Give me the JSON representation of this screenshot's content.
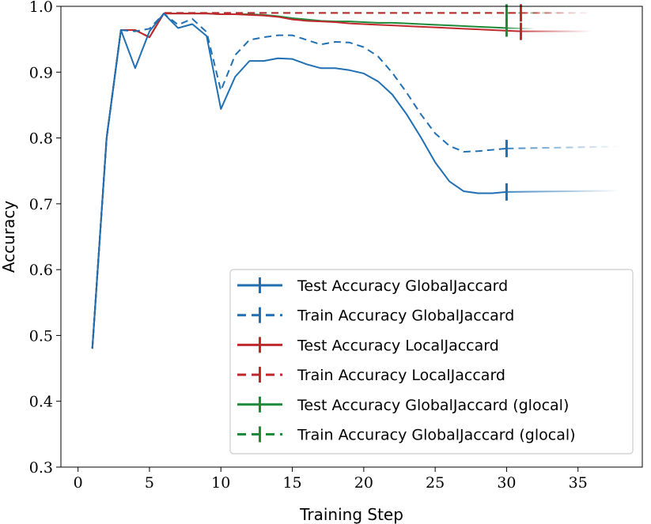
{
  "chart_data": {
    "type": "line",
    "title": "",
    "xlabel": "Training Step",
    "ylabel": "Accuracy",
    "xlim": [
      -1.2,
      39.5
    ],
    "ylim": [
      0.3,
      1.0
    ],
    "xticks": [
      0,
      5,
      10,
      15,
      20,
      25,
      30,
      35
    ],
    "yticks": [
      0.3,
      0.4,
      0.5,
      0.6,
      0.7,
      0.8,
      0.9,
      1.0
    ],
    "xtick_labels": [
      "0",
      "5",
      "10",
      "15",
      "20",
      "25",
      "30",
      "35"
    ],
    "ytick_labels": [
      "0.3",
      "0.4",
      "0.5",
      "0.6",
      "0.7",
      "0.8",
      "0.9",
      "1.0"
    ],
    "grid": false,
    "legend_position": "lower-right",
    "series": [
      {
        "name": "Test Accuracy GlobalJaccard",
        "color": "#1f6fb2",
        "linestyle": "solid",
        "x": [
          1,
          2,
          3,
          4,
          5,
          6,
          7,
          8,
          9,
          10,
          11,
          12,
          13,
          14,
          15,
          16,
          17,
          18,
          19,
          20,
          21,
          22,
          23,
          24,
          25,
          26,
          27,
          28,
          29,
          30
        ],
        "y": [
          0.48,
          0.8,
          0.964,
          0.906,
          0.962,
          0.989,
          0.967,
          0.973,
          0.955,
          0.844,
          0.893,
          0.917,
          0.917,
          0.921,
          0.92,
          0.912,
          0.906,
          0.906,
          0.903,
          0.898,
          0.886,
          0.866,
          0.836,
          0.801,
          0.763,
          0.734,
          0.719,
          0.716,
          0.716,
          0.718
        ],
        "fade_end": [
          38,
          0.72
        ],
        "marker_at": 30
      },
      {
        "name": "Train Accuracy GlobalJaccard",
        "color": "#1f6fb2",
        "linestyle": "dashed",
        "x": [
          1,
          2,
          3,
          4,
          5,
          6,
          7,
          8,
          9,
          10,
          11,
          12,
          13,
          14,
          15,
          16,
          17,
          18,
          19,
          20,
          21,
          22,
          23,
          24,
          25,
          26,
          27,
          28,
          29,
          30
        ],
        "y": [
          0.48,
          0.8,
          0.964,
          0.962,
          0.966,
          0.989,
          0.972,
          0.981,
          0.961,
          0.872,
          0.926,
          0.949,
          0.953,
          0.956,
          0.956,
          0.949,
          0.942,
          0.946,
          0.945,
          0.938,
          0.924,
          0.899,
          0.869,
          0.836,
          0.807,
          0.788,
          0.779,
          0.78,
          0.782,
          0.784
        ],
        "fade_end": [
          38,
          0.787
        ],
        "marker_at": 30
      },
      {
        "name": "Test Accuracy LocalJaccard",
        "color": "#c0282d",
        "linestyle": "solid",
        "x": [
          1,
          2,
          3,
          4,
          5,
          6,
          7,
          8,
          9,
          10,
          11,
          12,
          13,
          14,
          15,
          16,
          17,
          18,
          19,
          20,
          21,
          22,
          23,
          24,
          25,
          26,
          27,
          28,
          29,
          30,
          31
        ],
        "y": [
          0.48,
          0.8,
          0.964,
          0.964,
          0.953,
          0.989,
          0.989,
          0.989,
          0.989,
          0.988,
          0.988,
          0.987,
          0.986,
          0.984,
          0.98,
          0.978,
          0.977,
          0.976,
          0.974,
          0.973,
          0.972,
          0.971,
          0.97,
          0.969,
          0.968,
          0.967,
          0.966,
          0.965,
          0.964,
          0.963,
          0.962
        ],
        "fade_end": [
          36,
          0.962
        ],
        "marker_at": 31
      },
      {
        "name": "Train Accuracy LocalJaccard",
        "color": "#c0282d",
        "linestyle": "dashed",
        "x": [
          1,
          2,
          3,
          4,
          5,
          6,
          7,
          8,
          9,
          10,
          11,
          12,
          13,
          14,
          15,
          16,
          17,
          18,
          19,
          20,
          21,
          22,
          23,
          24,
          25,
          26,
          27,
          28,
          29,
          30,
          31
        ],
        "y": [
          0.48,
          0.8,
          0.964,
          0.964,
          0.953,
          0.99,
          0.99,
          0.99,
          0.99,
          0.99,
          0.99,
          0.99,
          0.99,
          0.99,
          0.99,
          0.99,
          0.99,
          0.99,
          0.99,
          0.99,
          0.99,
          0.99,
          0.99,
          0.99,
          0.99,
          0.99,
          0.99,
          0.99,
          0.99,
          0.99,
          0.99
        ],
        "fade_end": [
          36,
          0.99
        ],
        "marker_at": 31
      },
      {
        "name": "Test Accuracy GlobalJaccard (glocal)",
        "color": "#1d8a3a",
        "linestyle": "solid",
        "x": [
          1,
          2,
          3,
          4,
          5,
          6,
          7,
          8,
          9,
          10,
          11,
          12,
          13,
          14,
          15,
          16,
          17,
          18,
          19,
          20,
          21,
          22,
          23,
          24,
          25,
          26,
          27,
          28,
          29,
          30
        ],
        "y": [
          0.48,
          0.8,
          0.964,
          0.964,
          0.953,
          0.989,
          0.989,
          0.989,
          0.989,
          0.988,
          0.988,
          0.988,
          0.987,
          0.985,
          0.982,
          0.98,
          0.978,
          0.977,
          0.977,
          0.976,
          0.975,
          0.975,
          0.974,
          0.973,
          0.972,
          0.971,
          0.97,
          0.969,
          0.968,
          0.967
        ],
        "fade_end": [
          32,
          0.966
        ],
        "marker_at": 30
      },
      {
        "name": "Train Accuracy GlobalJaccard (glocal)",
        "color": "#1d8a3a",
        "linestyle": "dashed",
        "x": [
          1,
          2,
          3,
          4,
          5,
          6,
          7,
          8,
          9,
          10,
          11,
          12,
          13,
          14,
          15,
          16,
          17,
          18,
          19,
          20,
          21,
          22,
          23,
          24,
          25,
          26,
          27,
          28,
          29,
          30
        ],
        "y": [
          0.48,
          0.8,
          0.964,
          0.964,
          0.953,
          0.99,
          0.99,
          0.99,
          0.99,
          0.99,
          0.99,
          0.99,
          0.99,
          0.99,
          0.99,
          0.99,
          0.99,
          0.99,
          0.99,
          0.99,
          0.99,
          0.99,
          0.99,
          0.99,
          0.99,
          0.99,
          0.99,
          0.99,
          0.99,
          0.99
        ],
        "fade_end": [
          34,
          0.99
        ],
        "marker_at": 30
      }
    ]
  }
}
